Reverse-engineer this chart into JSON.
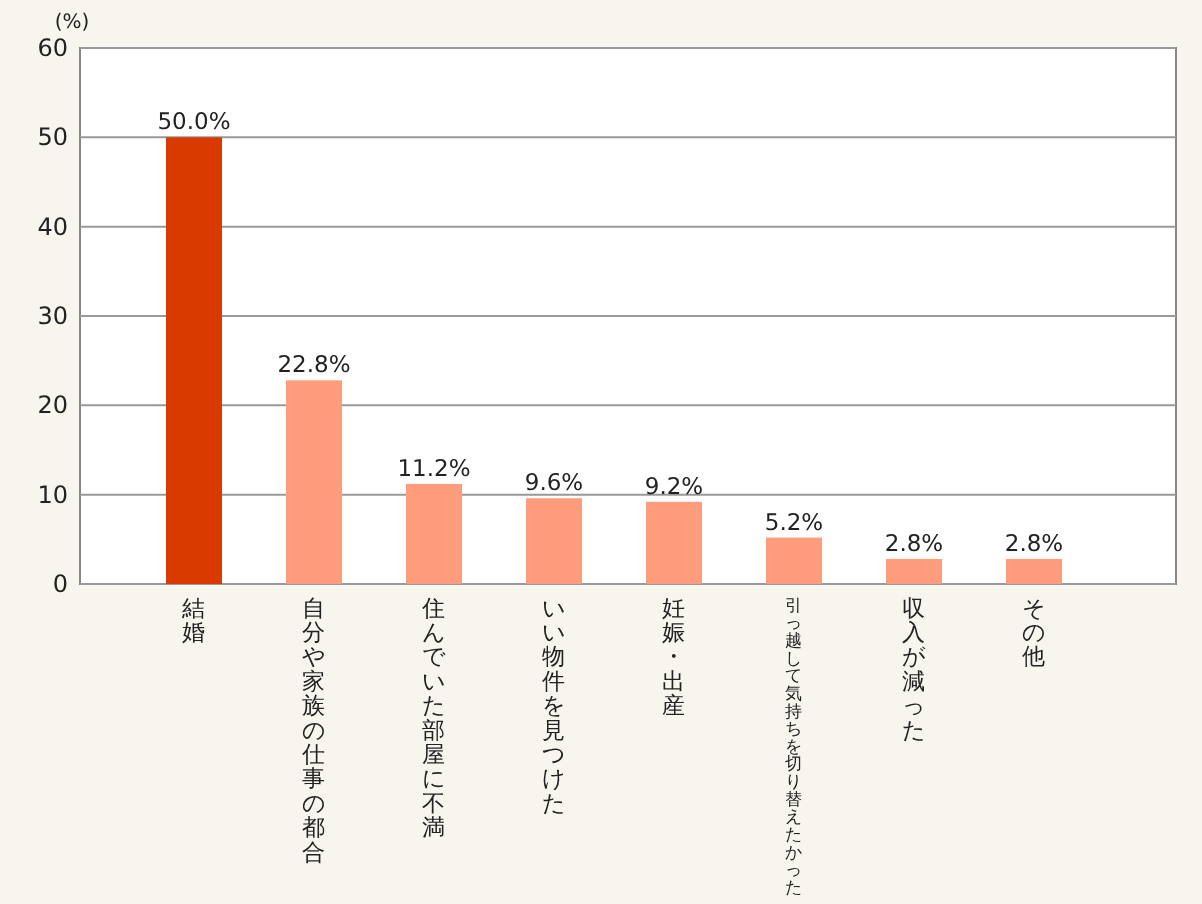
{
  "chart_data": {
    "type": "bar",
    "ylabel": "(%)",
    "categories": [
      "結婚",
      "自分や家族の仕事の都合",
      "住んでいた部屋に不満",
      "いい物件を見つけた",
      "妊娠・出産",
      "引っ越して気持ちを切り替えたかった",
      "収入が減った",
      "その他"
    ],
    "values": [
      50.0,
      22.8,
      11.2,
      9.6,
      9.2,
      5.2,
      2.8,
      2.8
    ],
    "colors": [
      "#d93a00",
      "#fe9c7c",
      "#fe9c7c",
      "#fe9c7c",
      "#fe9c7c",
      "#fe9c7c",
      "#fe9c7c",
      "#fe9c7c"
    ],
    "value_labels": [
      "50.0%",
      "22.8%",
      "11.2%",
      "9.6%",
      "9.2%",
      "5.2%",
      "2.8%",
      "2.8%"
    ],
    "ylim": [
      0,
      60
    ],
    "yticks": [
      0,
      10,
      20,
      30,
      40,
      50,
      60
    ],
    "grid": "y"
  }
}
